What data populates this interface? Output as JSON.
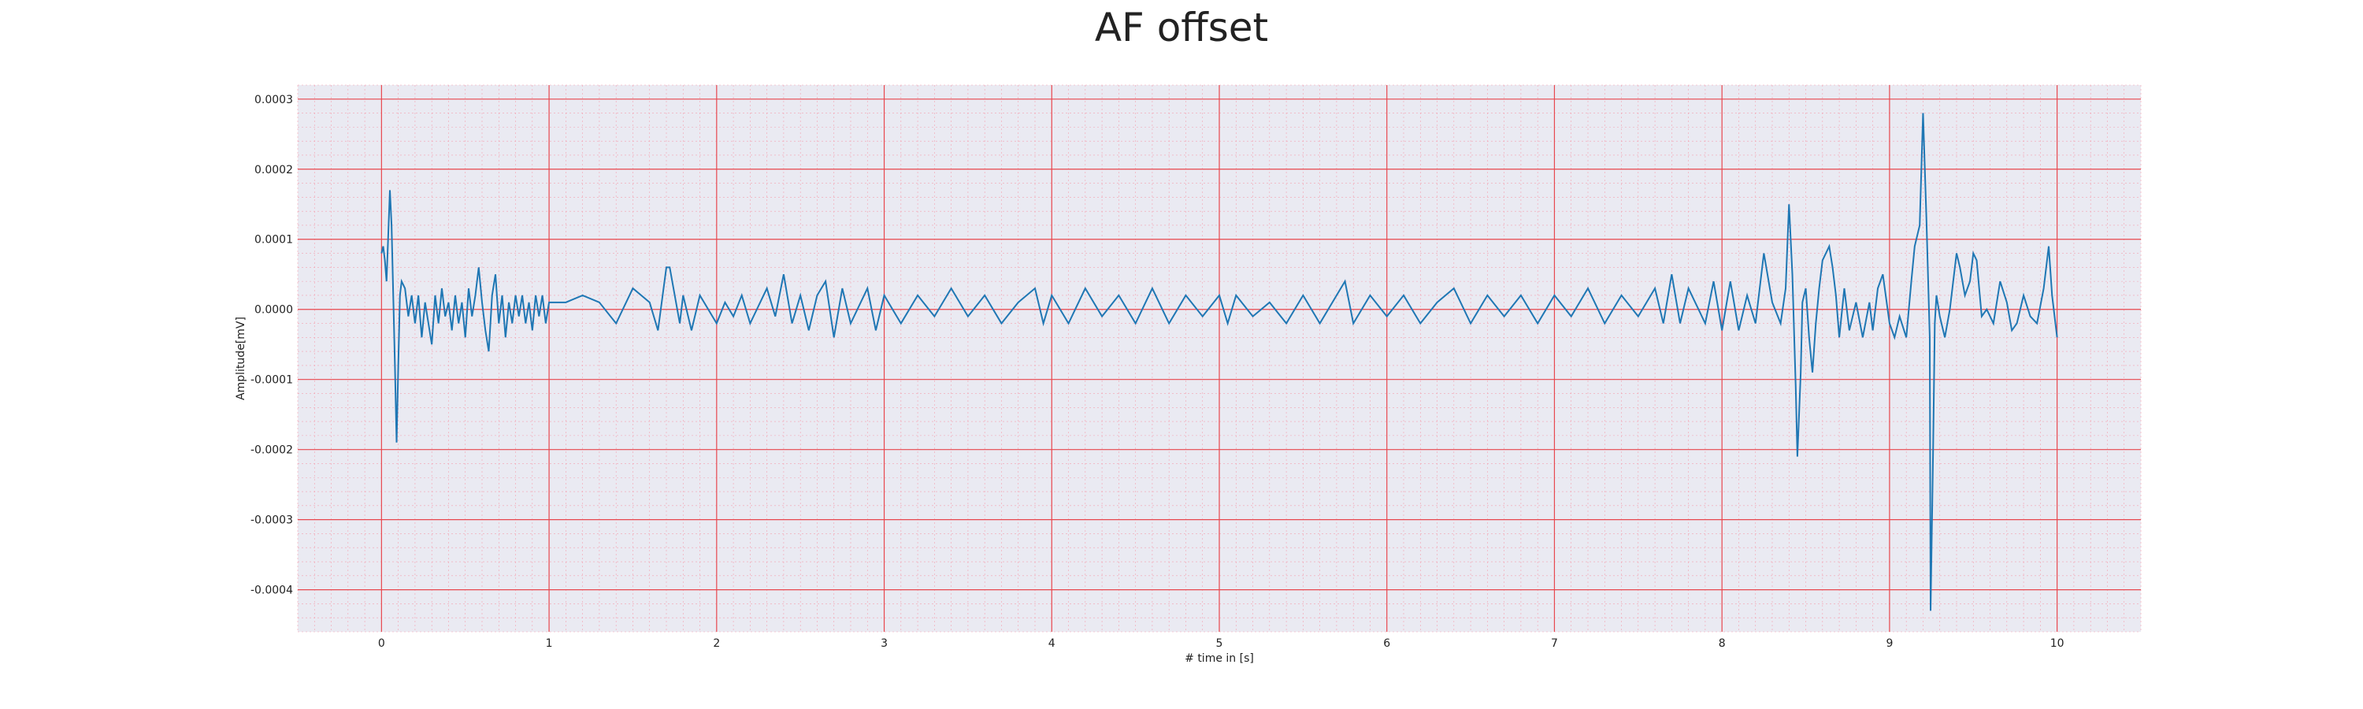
{
  "chart_data": {
    "type": "line",
    "title": "AF offset",
    "xlabel": "# time in [s]",
    "ylabel": "Amplitude[mV]",
    "xlim": [
      -0.5,
      10.5
    ],
    "ylim": [
      -0.00046,
      0.00032
    ],
    "xticks": [
      0,
      1,
      2,
      3,
      4,
      5,
      6,
      7,
      8,
      9,
      10
    ],
    "xtick_labels": [
      "0",
      "1",
      "2",
      "3",
      "4",
      "5",
      "6",
      "7",
      "8",
      "9",
      "10"
    ],
    "yticks": [
      0.0003,
      0.0002,
      0.0001,
      0.0,
      -0.0001,
      -0.0002,
      -0.0003,
      -0.0004
    ],
    "ytick_labels": [
      "0.0003",
      "0.0002",
      "0.0001",
      "0.0000",
      "-0.0001",
      "-0.0002",
      "-0.0003",
      "-0.0004"
    ],
    "grid": true,
    "series": [
      {
        "color": "#1f77b4",
        "points": [
          [
            0.0,
            8e-05
          ],
          [
            0.01,
            9e-05
          ],
          [
            0.02,
            7e-05
          ],
          [
            0.03,
            4e-05
          ],
          [
            0.05,
            0.00017
          ],
          [
            0.06,
            0.00012
          ],
          [
            0.07,
            2e-05
          ],
          [
            0.08,
            -8e-05
          ],
          [
            0.09,
            -0.00019
          ],
          [
            0.1,
            -8e-05
          ],
          [
            0.11,
            2e-05
          ],
          [
            0.12,
            4e-05
          ],
          [
            0.14,
            3e-05
          ],
          [
            0.16,
            -1e-05
          ],
          [
            0.18,
            2e-05
          ],
          [
            0.2,
            -2e-05
          ],
          [
            0.22,
            2e-05
          ],
          [
            0.24,
            -4e-05
          ],
          [
            0.26,
            1e-05
          ],
          [
            0.28,
            -2e-05
          ],
          [
            0.3,
            -5e-05
          ],
          [
            0.32,
            2e-05
          ],
          [
            0.34,
            -2e-05
          ],
          [
            0.36,
            3e-05
          ],
          [
            0.38,
            -1e-05
          ],
          [
            0.4,
            1e-05
          ],
          [
            0.42,
            -3e-05
          ],
          [
            0.44,
            2e-05
          ],
          [
            0.46,
            -2e-05
          ],
          [
            0.48,
            1e-05
          ],
          [
            0.5,
            -4e-05
          ],
          [
            0.52,
            3e-05
          ],
          [
            0.54,
            -1e-05
          ],
          [
            0.56,
            2e-05
          ],
          [
            0.58,
            6e-05
          ],
          [
            0.6,
            1e-05
          ],
          [
            0.62,
            -3e-05
          ],
          [
            0.64,
            -6e-05
          ],
          [
            0.66,
            2e-05
          ],
          [
            0.68,
            5e-05
          ],
          [
            0.7,
            -2e-05
          ],
          [
            0.72,
            2e-05
          ],
          [
            0.74,
            -4e-05
          ],
          [
            0.76,
            1e-05
          ],
          [
            0.78,
            -2e-05
          ],
          [
            0.8,
            2e-05
          ],
          [
            0.82,
            -1e-05
          ],
          [
            0.84,
            2e-05
          ],
          [
            0.86,
            -2e-05
          ],
          [
            0.88,
            1e-05
          ],
          [
            0.9,
            -3e-05
          ],
          [
            0.92,
            2e-05
          ],
          [
            0.94,
            -1e-05
          ],
          [
            0.96,
            2e-05
          ],
          [
            0.98,
            -2e-05
          ],
          [
            1.0,
            1e-05
          ],
          [
            1.1,
            1e-05
          ],
          [
            1.2,
            2e-05
          ],
          [
            1.3,
            1e-05
          ],
          [
            1.4,
            -2e-05
          ],
          [
            1.5,
            3e-05
          ],
          [
            1.6,
            1e-05
          ],
          [
            1.65,
            -3e-05
          ],
          [
            1.7,
            6e-05
          ],
          [
            1.72,
            6e-05
          ],
          [
            1.75,
            2e-05
          ],
          [
            1.78,
            -2e-05
          ],
          [
            1.8,
            2e-05
          ],
          [
            1.85,
            -3e-05
          ],
          [
            1.9,
            2e-05
          ],
          [
            2.0,
            -2e-05
          ],
          [
            2.05,
            1e-05
          ],
          [
            2.1,
            -1e-05
          ],
          [
            2.15,
            2e-05
          ],
          [
            2.2,
            -2e-05
          ],
          [
            2.3,
            3e-05
          ],
          [
            2.35,
            -1e-05
          ],
          [
            2.4,
            5e-05
          ],
          [
            2.45,
            -2e-05
          ],
          [
            2.5,
            2e-05
          ],
          [
            2.55,
            -3e-05
          ],
          [
            2.6,
            2e-05
          ],
          [
            2.65,
            4e-05
          ],
          [
            2.7,
            -4e-05
          ],
          [
            2.75,
            3e-05
          ],
          [
            2.8,
            -2e-05
          ],
          [
            2.9,
            3e-05
          ],
          [
            2.95,
            -3e-05
          ],
          [
            3.0,
            2e-05
          ],
          [
            3.1,
            -2e-05
          ],
          [
            3.2,
            2e-05
          ],
          [
            3.3,
            -1e-05
          ],
          [
            3.4,
            3e-05
          ],
          [
            3.5,
            -1e-05
          ],
          [
            3.6,
            2e-05
          ],
          [
            3.7,
            -2e-05
          ],
          [
            3.8,
            1e-05
          ],
          [
            3.9,
            3e-05
          ],
          [
            3.95,
            -2e-05
          ],
          [
            4.0,
            2e-05
          ],
          [
            4.1,
            -2e-05
          ],
          [
            4.2,
            3e-05
          ],
          [
            4.3,
            -1e-05
          ],
          [
            4.4,
            2e-05
          ],
          [
            4.5,
            -2e-05
          ],
          [
            4.6,
            3e-05
          ],
          [
            4.7,
            -2e-05
          ],
          [
            4.8,
            2e-05
          ],
          [
            4.9,
            -1e-05
          ],
          [
            5.0,
            2e-05
          ],
          [
            5.05,
            -2e-05
          ],
          [
            5.1,
            2e-05
          ],
          [
            5.2,
            -1e-05
          ],
          [
            5.3,
            1e-05
          ],
          [
            5.4,
            -2e-05
          ],
          [
            5.5,
            2e-05
          ],
          [
            5.6,
            -2e-05
          ],
          [
            5.7,
            2e-05
          ],
          [
            5.75,
            4e-05
          ],
          [
            5.8,
            -2e-05
          ],
          [
            5.9,
            2e-05
          ],
          [
            6.0,
            -1e-05
          ],
          [
            6.1,
            2e-05
          ],
          [
            6.2,
            -2e-05
          ],
          [
            6.3,
            1e-05
          ],
          [
            6.4,
            3e-05
          ],
          [
            6.5,
            -2e-05
          ],
          [
            6.6,
            2e-05
          ],
          [
            6.7,
            -1e-05
          ],
          [
            6.8,
            2e-05
          ],
          [
            6.9,
            -2e-05
          ],
          [
            7.0,
            2e-05
          ],
          [
            7.1,
            -1e-05
          ],
          [
            7.2,
            3e-05
          ],
          [
            7.3,
            -2e-05
          ],
          [
            7.4,
            2e-05
          ],
          [
            7.5,
            -1e-05
          ],
          [
            7.6,
            3e-05
          ],
          [
            7.65,
            -2e-05
          ],
          [
            7.7,
            5e-05
          ],
          [
            7.75,
            -2e-05
          ],
          [
            7.8,
            3e-05
          ],
          [
            7.9,
            -2e-05
          ],
          [
            7.95,
            4e-05
          ],
          [
            8.0,
            -3e-05
          ],
          [
            8.05,
            4e-05
          ],
          [
            8.1,
            -3e-05
          ],
          [
            8.15,
            2e-05
          ],
          [
            8.2,
            -2e-05
          ],
          [
            8.25,
            8e-05
          ],
          [
            8.3,
            1e-05
          ],
          [
            8.35,
            -2e-05
          ],
          [
            8.38,
            3e-05
          ],
          [
            8.4,
            0.00015
          ],
          [
            8.42,
            5e-05
          ],
          [
            8.44,
            -0.00011
          ],
          [
            8.45,
            -0.00021
          ],
          [
            8.47,
            -9e-05
          ],
          [
            8.48,
            1e-05
          ],
          [
            8.5,
            3e-05
          ],
          [
            8.52,
            -4e-05
          ],
          [
            8.54,
            -9e-05
          ],
          [
            8.56,
            -2e-05
          ],
          [
            8.58,
            3e-05
          ],
          [
            8.6,
            7e-05
          ],
          [
            8.62,
            8e-05
          ],
          [
            8.64,
            9e-05
          ],
          [
            8.66,
            6e-05
          ],
          [
            8.68,
            2e-05
          ],
          [
            8.7,
            -4e-05
          ],
          [
            8.73,
            3e-05
          ],
          [
            8.76,
            -3e-05
          ],
          [
            8.8,
            1e-05
          ],
          [
            8.84,
            -4e-05
          ],
          [
            8.88,
            1e-05
          ],
          [
            8.9,
            -3e-05
          ],
          [
            8.93,
            3e-05
          ],
          [
            8.96,
            5e-05
          ],
          [
            9.0,
            -2e-05
          ],
          [
            9.03,
            -4e-05
          ],
          [
            9.06,
            -1e-05
          ],
          [
            9.1,
            -4e-05
          ],
          [
            9.13,
            4e-05
          ],
          [
            9.15,
            9e-05
          ],
          [
            9.18,
            0.00012
          ],
          [
            9.2,
            0.00028
          ],
          [
            9.22,
            0.00013
          ],
          [
            9.24,
            -4e-05
          ],
          [
            9.245,
            -0.00043
          ],
          [
            9.26,
            -0.0002
          ],
          [
            9.27,
            -2e-05
          ],
          [
            9.28,
            2e-05
          ],
          [
            9.3,
            -1e-05
          ],
          [
            9.33,
            -4e-05
          ],
          [
            9.36,
            0.0
          ],
          [
            9.4,
            8e-05
          ],
          [
            9.42,
            6e-05
          ],
          [
            9.45,
            2e-05
          ],
          [
            9.48,
            4e-05
          ],
          [
            9.5,
            8e-05
          ],
          [
            9.52,
            7e-05
          ],
          [
            9.55,
            -1e-05
          ],
          [
            9.58,
            0.0
          ],
          [
            9.62,
            -2e-05
          ],
          [
            9.66,
            4e-05
          ],
          [
            9.7,
            1e-05
          ],
          [
            9.73,
            -3e-05
          ],
          [
            9.76,
            -2e-05
          ],
          [
            9.8,
            2e-05
          ],
          [
            9.84,
            -1e-05
          ],
          [
            9.88,
            -2e-05
          ],
          [
            9.92,
            3e-05
          ],
          [
            9.95,
            9e-05
          ],
          [
            9.97,
            2e-05
          ],
          [
            10.0,
            -4e-05
          ]
        ]
      }
    ]
  }
}
